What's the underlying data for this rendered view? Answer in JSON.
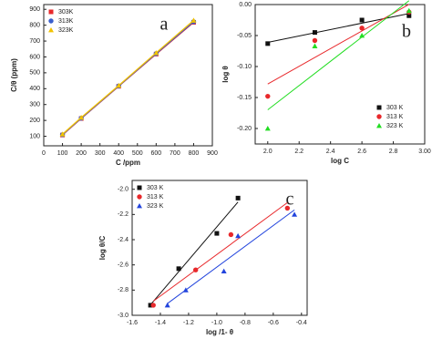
{
  "chart_data": [
    {
      "type": "line",
      "annotation": "a",
      "xlabel": "C /ppm",
      "ylabel": "C/θ (ppm)",
      "x": [
        100,
        200,
        400,
        600,
        800
      ],
      "series": [
        {
          "name": "303K",
          "color": "#e8282b",
          "marker": "square",
          "values": [
            108,
            212,
            415,
            618,
            818
          ]
        },
        {
          "name": "313K",
          "color": "#3a5fcd",
          "marker": "circle",
          "values": [
            110,
            214,
            417,
            621,
            822
          ]
        },
        {
          "name": "323K",
          "color": "#f2c200",
          "marker": "triangle",
          "values": [
            113,
            218,
            420,
            626,
            830
          ]
        }
      ],
      "xlim": [
        0,
        900
      ],
      "xticks": [
        0,
        100,
        200,
        300,
        400,
        500,
        600,
        700,
        800,
        900
      ],
      "ylim": [
        40,
        930
      ],
      "yticks": [
        100,
        200,
        300,
        400,
        500,
        600,
        700,
        800,
        900
      ],
      "legend": "top-left"
    },
    {
      "type": "scatter",
      "annotation": "b",
      "xlabel": "log C",
      "ylabel": "log θ",
      "x": [
        2.0,
        2.3,
        2.6,
        2.9
      ],
      "series": [
        {
          "name": "303 K",
          "color": "#111111",
          "marker": "square",
          "values": [
            -0.063,
            -0.045,
            -0.025,
            -0.018
          ]
        },
        {
          "name": "313 K",
          "color": "#e8282b",
          "marker": "circle",
          "values": [
            -0.148,
            -0.058,
            -0.038,
            -0.012
          ]
        },
        {
          "name": "323 K",
          "color": "#22dd22",
          "marker": "triangle",
          "values": [
            -0.2,
            -0.067,
            -0.05,
            -0.01
          ]
        }
      ],
      "trendline": true,
      "xlim": [
        1.92,
        3.0
      ],
      "xticks": [
        {
          "value": 2.0,
          "label": "2.0"
        },
        2.2,
        2.4,
        2.6,
        2.8,
        {
          "value": 3.0,
          "label": "3.00"
        }
      ],
      "ylim": [
        -0.225,
        0
      ],
      "yticks": [
        {
          "value": 0,
          "label": "0.00"
        },
        -0.05,
        {
          "value": -0.1,
          "label": "-0.10"
        },
        -0.15,
        {
          "value": -0.2,
          "label": "-0.20"
        }
      ],
      "legend": "bottom-right"
    },
    {
      "type": "scatter",
      "annotation": "c",
      "xlabel": "log /1- θ",
      "ylabel": "log θ/C",
      "series": [
        {
          "name": "303 K",
          "color": "#111111",
          "marker": "square",
          "x": [
            -1.47,
            -1.27,
            -1.0,
            -0.85
          ],
          "values": [
            -2.92,
            -2.63,
            -2.35,
            -2.07
          ]
        },
        {
          "name": "313 K",
          "color": "#e8282b",
          "marker": "circle",
          "x": [
            -1.45,
            -1.15,
            -0.9,
            -0.5
          ],
          "values": [
            -2.92,
            -2.64,
            -2.36,
            -2.15
          ]
        },
        {
          "name": "323 K",
          "color": "#2244dd",
          "marker": "triangle",
          "x": [
            -1.35,
            -1.22,
            -0.95,
            -0.85,
            -0.45
          ],
          "values": [
            -2.92,
            -2.8,
            -2.65,
            -2.37,
            -2.2
          ]
        }
      ],
      "trendline": true,
      "xlim": [
        -1.6,
        -0.36
      ],
      "xticks": [
        -1.6,
        -1.4,
        -1.2,
        {
          "value": -1.0,
          "label": "-1.0"
        },
        -0.8,
        -0.6,
        -0.4
      ],
      "ylim": [
        -3.0,
        -1.93
      ],
      "yticks": [
        {
          "value": -2.0,
          "label": "-2.0"
        },
        -2.2,
        -2.4,
        -2.6,
        -2.8,
        {
          "value": -3.0,
          "label": "-3.0"
        }
      ],
      "legend": "top-left"
    }
  ]
}
